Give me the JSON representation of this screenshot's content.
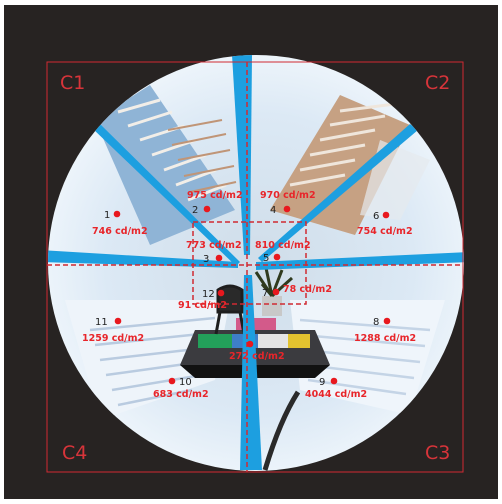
{
  "colors": {
    "background": "#272322",
    "frame": "#d02a32",
    "marker": "#e8181e",
    "sky": "#dbe8f4",
    "blue_band": "#1d9fe0"
  },
  "corners": [
    "C1",
    "C2",
    "C3",
    "C4"
  ],
  "measurements": [
    {
      "number": "1",
      "value": "746 cd/m2"
    },
    {
      "number": "2",
      "value": "975 cd/m2"
    },
    {
      "number": "3",
      "value": "773 cd/m2"
    },
    {
      "number": "4",
      "value": "970 cd/m2"
    },
    {
      "number": "5",
      "value": "810 cd/m2"
    },
    {
      "number": "6",
      "value": "754 cd/m2"
    },
    {
      "number": "7",
      "value": "78 cd/m2"
    },
    {
      "number": "8",
      "value": "1288 cd/m2"
    },
    {
      "number": "9",
      "value": "4044 cd/m2"
    },
    {
      "number": "10",
      "value": "683 cd/m2"
    },
    {
      "number": "11",
      "value": "1259 cd/m2"
    },
    {
      "number": "12",
      "value": "91 cd/m2"
    },
    {
      "number": "",
      "value": "272 cd/m2"
    }
  ]
}
